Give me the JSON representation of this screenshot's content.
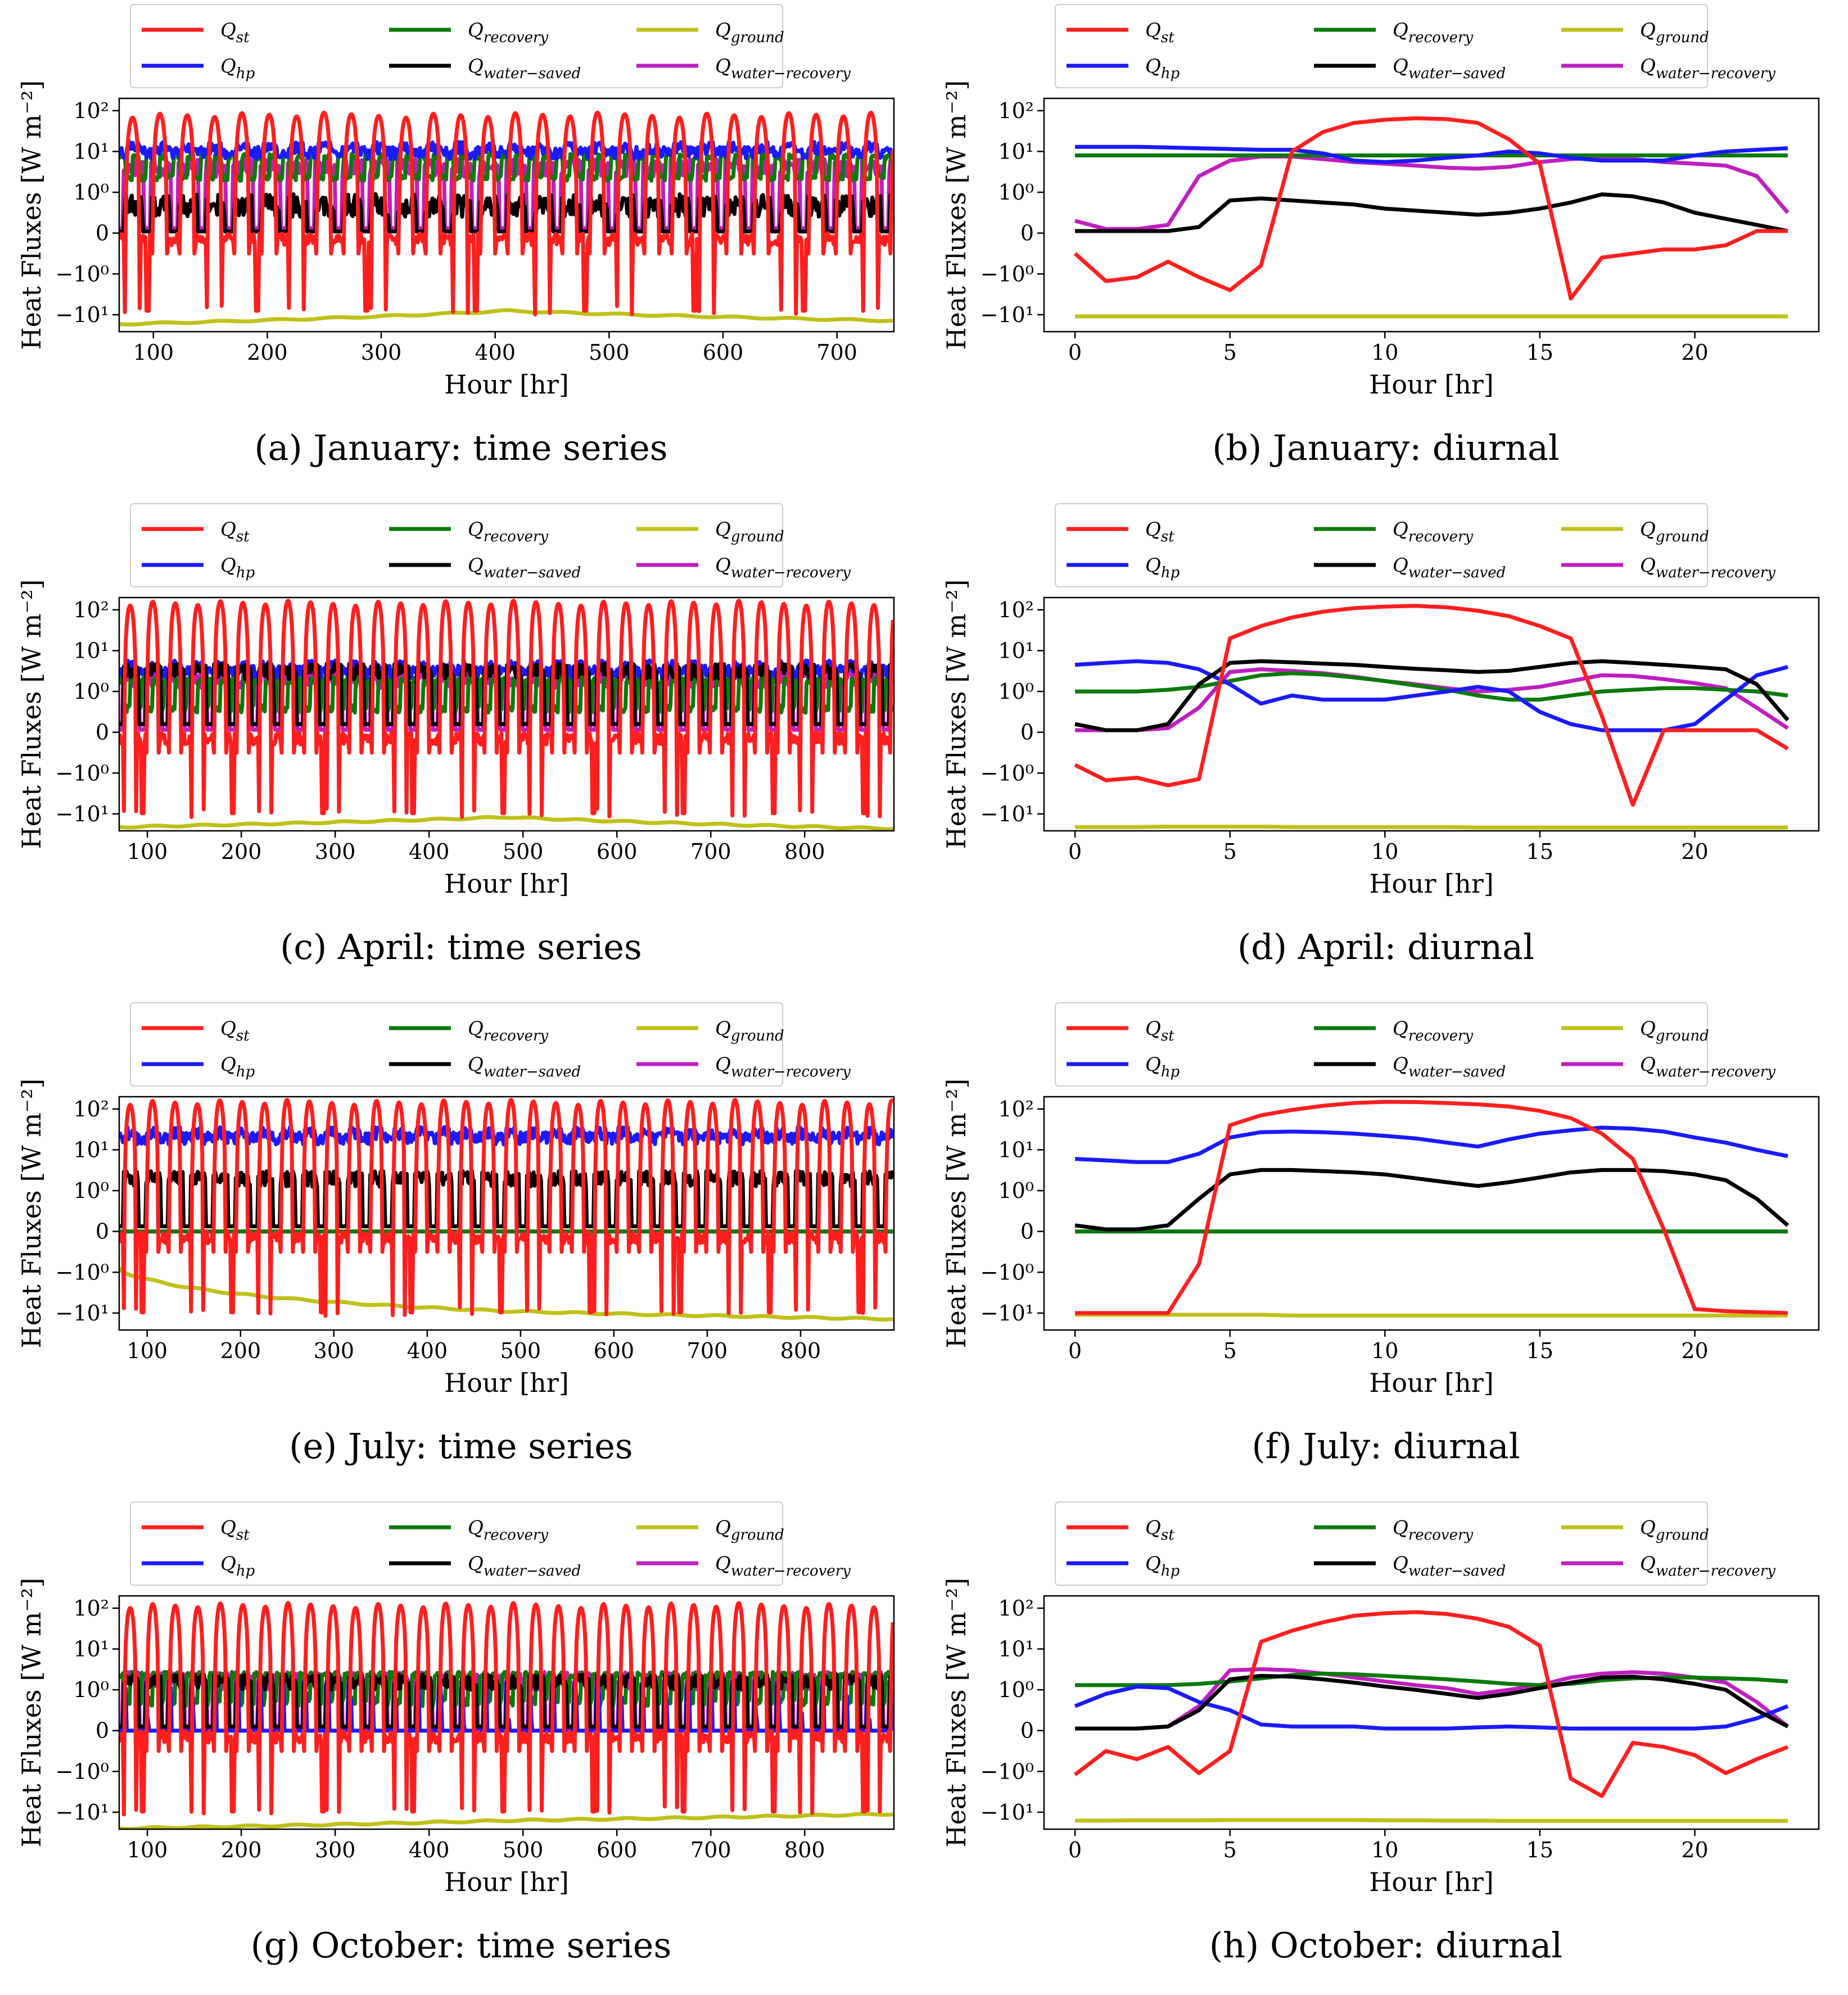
{
  "colors": {
    "st": "#ff1f1f",
    "hp": "#1a1aff",
    "recovery": "#0a7a0a",
    "water_saved": "#000000",
    "ground": "#c0c01a",
    "water_recovery": "#bf1fbf"
  },
  "legend": [
    {
      "key": "st",
      "label": "Q",
      "sub": "st"
    },
    {
      "key": "recovery",
      "label": "Q",
      "sub": "recovery"
    },
    {
      "key": "ground",
      "label": "Q",
      "sub": "ground"
    },
    {
      "key": "hp",
      "label": "Q",
      "sub": "hp"
    },
    {
      "key": "water_saved",
      "label": "Q",
      "sub": "water−saved"
    },
    {
      "key": "water_recovery",
      "label": "Q",
      "sub": "water−recovery"
    }
  ],
  "axes": {
    "ylabel": "Heat Fluxes [W m⁻²]",
    "xlabel": "Hour [hr]",
    "yticks": [
      {
        "v": 100,
        "t": "10²"
      },
      {
        "v": 10,
        "t": "10¹"
      },
      {
        "v": 1,
        "t": "10⁰"
      },
      {
        "v": 0,
        "t": "0"
      },
      {
        "v": -1,
        "t": "−10⁰"
      },
      {
        "v": -10,
        "t": "−10¹"
      }
    ]
  },
  "chart_data": [
    {
      "id": "a",
      "type": "line",
      "caption": "(a) January: time series",
      "kind": "ts",
      "xlim": [
        0,
        680
      ],
      "xticks": [
        100,
        200,
        300,
        400,
        500,
        600,
        700
      ],
      "tick_offset": 70,
      "params": {
        "st_peak": 80,
        "st_neg": -10,
        "hp_base": 12,
        "rec_base": 8,
        "ws_base": 0.8,
        "wr_base": 6,
        "ground": [
          -17,
          -8,
          -14
        ]
      }
    },
    {
      "id": "b",
      "type": "line",
      "caption": "(b) January: diurnal",
      "kind": "diurnal",
      "xlim": [
        -1,
        24
      ],
      "xticks": [
        0,
        5,
        10,
        15,
        20
      ],
      "x": [
        0,
        1,
        2,
        3,
        4,
        5,
        6,
        7,
        8,
        9,
        10,
        11,
        12,
        13,
        14,
        15,
        16,
        17,
        18,
        19,
        20,
        21,
        22,
        23
      ],
      "series": {
        "st": [
          -0.5,
          -1.5,
          -1.2,
          -0.7,
          -1.2,
          -2.5,
          -0.8,
          10,
          30,
          50,
          60,
          65,
          62,
          50,
          20,
          5,
          -4,
          -0.6,
          -0.5,
          -0.4,
          -0.4,
          -0.3,
          0.05,
          0.05
        ],
        "hp": [
          13,
          13,
          13,
          12.5,
          12,
          11.5,
          11,
          11,
          9,
          6,
          5.5,
          6,
          7,
          8,
          10,
          9,
          7,
          6,
          6,
          6,
          8,
          10,
          11,
          12
        ],
        "recovery": [
          8,
          8,
          8,
          8,
          8,
          8,
          8,
          8,
          8,
          8,
          8,
          8,
          8,
          8,
          8,
          8,
          8,
          8,
          8,
          8,
          8,
          8,
          8,
          8
        ],
        "water_saved": [
          0.05,
          0.05,
          0.05,
          0.05,
          0.15,
          0.8,
          0.85,
          0.8,
          0.75,
          0.7,
          0.6,
          0.55,
          0.5,
          0.45,
          0.5,
          0.6,
          0.75,
          0.95,
          0.9,
          0.75,
          0.5,
          0.35,
          0.2,
          0.05
        ],
        "ground": [
          -11,
          -11,
          -11,
          -11,
          -11,
          -11,
          -11,
          -11,
          -11,
          -11,
          -11,
          -11,
          -11,
          -11,
          -11,
          -11,
          -11,
          -11,
          -11,
          -11,
          -11,
          -11,
          -11,
          -11
        ],
        "water_recovery": [
          0.3,
          0.1,
          0.1,
          0.2,
          2.5,
          6,
          7.5,
          7.5,
          6.5,
          5.5,
          5,
          4.5,
          4,
          3.8,
          4.2,
          5.5,
          6.5,
          7,
          6.5,
          5.5,
          5,
          4.5,
          2.5,
          0.5
        ]
      }
    },
    {
      "id": "c",
      "type": "line",
      "caption": "(c) April: time series",
      "kind": "ts",
      "xlim": [
        0,
        825
      ],
      "xticks": [
        100,
        200,
        300,
        400,
        500,
        600,
        700,
        800
      ],
      "tick_offset": 70,
      "params": {
        "st_peak": 150,
        "st_neg": -12,
        "hp_base": 4,
        "rec_base": 2,
        "ws_base": 4,
        "wr_base": 3,
        "ground": [
          -21,
          -12,
          -23
        ]
      }
    },
    {
      "id": "d",
      "type": "line",
      "caption": "(d) April: diurnal",
      "kind": "diurnal",
      "xlim": [
        -1,
        24
      ],
      "xticks": [
        0,
        5,
        10,
        15,
        20
      ],
      "x": [
        0,
        1,
        2,
        3,
        4,
        5,
        6,
        7,
        8,
        9,
        10,
        11,
        12,
        13,
        14,
        15,
        16,
        17,
        18,
        19,
        20,
        21,
        22,
        23
      ],
      "series": {
        "st": [
          -0.8,
          -1.5,
          -1.3,
          -2,
          -1.4,
          20,
          40,
          65,
          90,
          110,
          120,
          125,
          115,
          95,
          70,
          40,
          20,
          0.4,
          -6,
          0.05,
          0.05,
          0.05,
          0.05,
          -0.4
        ],
        "hp": [
          4.5,
          5,
          5.5,
          5,
          3.5,
          1.5,
          0.7,
          0.9,
          0.8,
          0.8,
          0.8,
          0.9,
          1,
          1.3,
          1,
          0.5,
          0.2,
          0.05,
          0.05,
          0.05,
          0.2,
          0.8,
          2.5,
          4
        ],
        "recovery": [
          1,
          1,
          1,
          1.1,
          1.3,
          1.8,
          2.5,
          2.8,
          2.6,
          2.2,
          1.8,
          1.4,
          1.1,
          0.9,
          0.8,
          0.8,
          0.9,
          1,
          1.1,
          1.2,
          1.2,
          1.1,
          1,
          0.9
        ],
        "water_saved": [
          0.2,
          0.05,
          0.05,
          0.2,
          1.5,
          5,
          5.5,
          5.2,
          4.8,
          4.5,
          4,
          3.6,
          3.3,
          3,
          3.2,
          4,
          5,
          5.5,
          5,
          4.5,
          4,
          3.5,
          1.5,
          0.3
        ],
        "ground": [
          -21,
          -21,
          -21,
          -20.5,
          -20.5,
          -20.5,
          -20.5,
          -21,
          -21,
          -21,
          -21,
          -21,
          -21,
          -21.5,
          -21.5,
          -21.5,
          -21.5,
          -21.5,
          -21.5,
          -21.5,
          -21.5,
          -21.5,
          -21.5,
          -21.5
        ],
        "water_recovery": [
          0.05,
          0.05,
          0.05,
          0.1,
          0.6,
          3,
          3.5,
          3.2,
          2.8,
          2.3,
          1.8,
          1.5,
          1.2,
          1,
          1.1,
          1.3,
          1.8,
          2.5,
          2.4,
          2,
          1.6,
          1.2,
          0.6,
          0.1
        ]
      }
    },
    {
      "id": "e",
      "type": "line",
      "caption": "(e) July: time series",
      "kind": "ts",
      "xlim": [
        0,
        830
      ],
      "xticks": [
        100,
        200,
        300,
        400,
        500,
        600,
        700,
        800
      ],
      "tick_offset": 70,
      "params": {
        "st_peak": 150,
        "st_neg": -12,
        "hp_base": 25,
        "rec_base": 0,
        "ws_base": 2.5,
        "wr_base": 0,
        "ground": [
          -0.9,
          -9,
          -14
        ]
      }
    },
    {
      "id": "f",
      "type": "line",
      "caption": "(f) July: diurnal",
      "kind": "diurnal",
      "xlim": [
        -1,
        24
      ],
      "xticks": [
        0,
        5,
        10,
        15,
        20
      ],
      "x": [
        0,
        1,
        2,
        3,
        4,
        5,
        6,
        7,
        8,
        9,
        10,
        11,
        12,
        13,
        14,
        15,
        16,
        17,
        18,
        19,
        20,
        21,
        22,
        23
      ],
      "series": {
        "st": [
          -10,
          -10,
          -10,
          -10,
          -0.8,
          40,
          70,
          95,
          120,
          140,
          150,
          148,
          140,
          130,
          115,
          90,
          60,
          25,
          6,
          0.05,
          -8,
          -9,
          -9.5,
          -10
        ],
        "hp": [
          6,
          5.5,
          5,
          5,
          8,
          20,
          27,
          28,
          27,
          25,
          22,
          19,
          15,
          12,
          18,
          25,
          30,
          35,
          33,
          28,
          20,
          15,
          10,
          7
        ],
        "recovery": [
          0,
          0,
          0,
          0,
          0,
          0,
          0,
          0,
          0,
          0,
          0,
          0,
          0,
          0,
          0,
          0,
          0,
          0,
          0,
          0,
          0,
          0,
          0,
          0
        ],
        "water_saved": [
          0.15,
          0.05,
          0.05,
          0.15,
          0.8,
          2.5,
          3.2,
          3.2,
          3,
          2.8,
          2.5,
          2,
          1.6,
          1.3,
          1.6,
          2.1,
          2.8,
          3.2,
          3.2,
          3,
          2.5,
          1.8,
          0.8,
          0.15
        ],
        "ground": [
          -11,
          -11,
          -11,
          -11,
          -11,
          -11,
          -11,
          -11.5,
          -11.5,
          -11.5,
          -11.5,
          -11.5,
          -11.5,
          -11.5,
          -11.5,
          -11.5,
          -11.5,
          -11.5,
          -11.5,
          -11.5,
          -11.5,
          -11.5,
          -11.5,
          -11.5
        ],
        "water_recovery": [
          0,
          0,
          0,
          0,
          0,
          0,
          0,
          0,
          0,
          0,
          0,
          0,
          0,
          0,
          0,
          0,
          0,
          0,
          0,
          0,
          0,
          0,
          0,
          0
        ]
      }
    },
    {
      "id": "g",
      "type": "line",
      "caption": "(g) October: time series",
      "kind": "ts",
      "xlim": [
        0,
        825
      ],
      "xticks": [
        100,
        200,
        300,
        400,
        500,
        600,
        700,
        800
      ],
      "tick_offset": 70,
      "params": {
        "st_peak": 120,
        "st_neg": -12,
        "hp_base": 0.8,
        "rec_base": 2.5,
        "ws_base": 2,
        "wr_base": 2.5,
        "ground": [
          -25,
          -16,
          -11
        ]
      }
    },
    {
      "id": "h",
      "type": "line",
      "caption": "(h) October: diurnal",
      "kind": "diurnal",
      "xlim": [
        -1,
        24
      ],
      "xticks": [
        0,
        5,
        10,
        15,
        20
      ],
      "x": [
        0,
        1,
        2,
        3,
        4,
        5,
        6,
        7,
        8,
        9,
        10,
        11,
        12,
        13,
        14,
        15,
        16,
        17,
        18,
        19,
        20,
        21,
        22,
        23
      ],
      "series": {
        "st": [
          -1.2,
          -0.5,
          -0.7,
          -0.4,
          -1.1,
          -0.5,
          15,
          28,
          45,
          65,
          75,
          80,
          72,
          55,
          35,
          12,
          -1.5,
          -4,
          -0.3,
          -0.4,
          -0.6,
          -1.1,
          -0.7,
          -0.4
        ],
        "hp": [
          0.6,
          0.9,
          1.2,
          1.1,
          0.7,
          0.5,
          0.15,
          0.1,
          0.1,
          0.1,
          0.05,
          0.05,
          0.05,
          0.08,
          0.1,
          0.08,
          0.05,
          0.05,
          0.05,
          0.05,
          0.05,
          0.1,
          0.3,
          0.6
        ],
        "recovery": [
          1.3,
          1.3,
          1.3,
          1.3,
          1.4,
          1.6,
          1.9,
          2.3,
          2.5,
          2.4,
          2.2,
          2,
          1.8,
          1.6,
          1.4,
          1.3,
          1.4,
          1.7,
          1.9,
          2,
          2,
          1.9,
          1.8,
          1.6
        ],
        "water_saved": [
          0.05,
          0.05,
          0.05,
          0.1,
          0.5,
          1.8,
          2.2,
          2.1,
          1.8,
          1.5,
          1.2,
          1,
          0.9,
          0.8,
          0.9,
          1.1,
          1.5,
          2,
          2.1,
          1.8,
          1.4,
          1,
          0.5,
          0.1
        ],
        "ground": [
          -16,
          -16,
          -15.8,
          -15.8,
          -15.8,
          -15.5,
          -15.5,
          -15.5,
          -15.5,
          -15.5,
          -15.8,
          -15.8,
          -16,
          -16,
          -16.3,
          -16.3,
          -16.3,
          -16.3,
          -16.3,
          -16.3,
          -16.3,
          -16.3,
          -16.3,
          -16.3
        ],
        "water_recovery": [
          0.05,
          0.05,
          0.05,
          0.1,
          0.6,
          3,
          3.2,
          3,
          2.5,
          2,
          1.6,
          1.3,
          1.1,
          0.9,
          1,
          1.3,
          2,
          2.5,
          2.7,
          2.5,
          2,
          1.5,
          0.7,
          0.1
        ]
      }
    }
  ]
}
